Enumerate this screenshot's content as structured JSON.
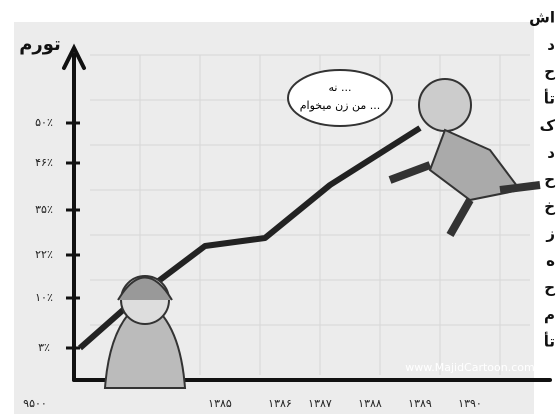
{
  "axis_label": "تورم",
  "y_labels": [
    "۵۰٪",
    "۴۶٪",
    "۳۵٪",
    "۲۲٪",
    "۱۰٪",
    "۳٪"
  ],
  "x_labels": [
    "۹۵۰۰",
    "۱۳۸۵",
    "۱۳۸۶",
    "۱۳۸۷",
    "۱۳۸۸",
    "۱۳۸۹",
    "۱۳۹۰"
  ],
  "speech_bubble": [
    "نه ...",
    "من زن میخوام ..."
  ],
  "watermark": "www.MajidCartoon.com",
  "side_column": [
    "اش",
    "د",
    "ح",
    "تأ",
    "ک",
    "د",
    "ح",
    "خ",
    "ز",
    "ه",
    "ح",
    "م",
    "تأ"
  ]
}
